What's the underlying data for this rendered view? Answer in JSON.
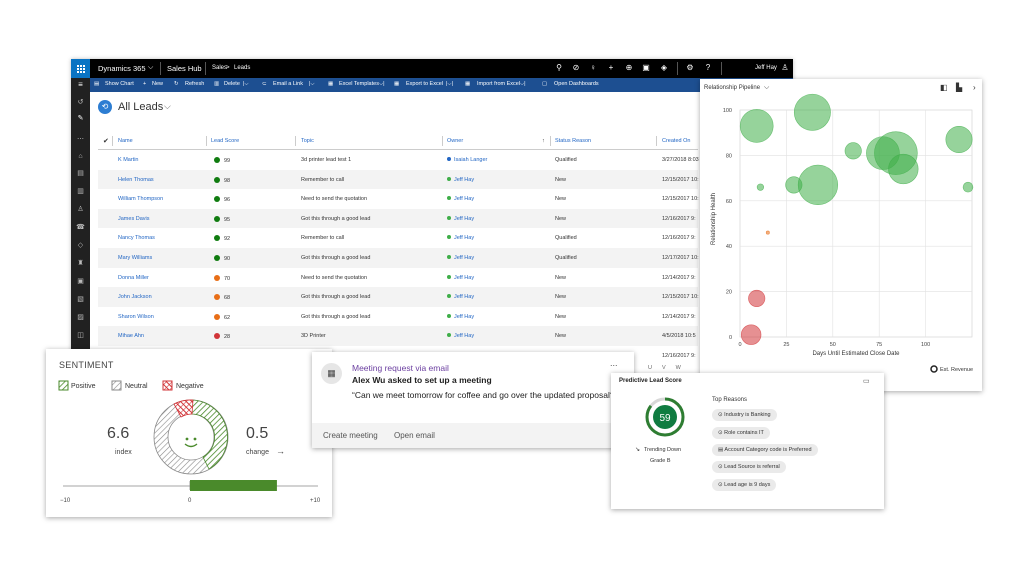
{
  "topbar": {
    "app_name": "Dynamics 365",
    "area": "Sales Hub",
    "breadcrumb_root": "Sales",
    "breadcrumb_sep": ">",
    "breadcrumb_current": "Leads",
    "user": "Jeff Hay"
  },
  "command_bar": {
    "show_chart": "Show Chart",
    "new": "New",
    "refresh": "Refresh",
    "delete": "Delete",
    "email_link": "Email a Link",
    "excel_templates": "Excel Templates",
    "export_excel": "Export to Excel",
    "import_excel": "Import from Excel",
    "open_dashboards": "Open Dashboards"
  },
  "view": {
    "title": "All Leads"
  },
  "grid": {
    "columns": [
      "Name",
      "Lead Score",
      "Topic",
      "Owner",
      "Status Reason",
      "Created On"
    ],
    "rows": [
      {
        "name": "K Martin",
        "score": "99",
        "color": "#107c10",
        "topic": "3d printer lead test 1",
        "owner": "Isaiah Langer",
        "owner_color": "#2266c4",
        "status": "Qualified",
        "created": "3/27/2018 8:03"
      },
      {
        "name": "Helen Thomas",
        "score": "98",
        "color": "#107c10",
        "topic": "Remember to call",
        "owner": "Jeff Hay",
        "owner_color": "#3fae49",
        "status": "New",
        "created": "12/15/2017 10:"
      },
      {
        "name": "William Thompson",
        "score": "96",
        "color": "#107c10",
        "topic": "Need to send the quotation",
        "owner": "Jeff Hay",
        "owner_color": "#3fae49",
        "status": "New",
        "created": "12/15/2017 10:"
      },
      {
        "name": "James Davis",
        "score": "95",
        "color": "#107c10",
        "topic": "Got this through a good lead",
        "owner": "Jeff Hay",
        "owner_color": "#3fae49",
        "status": "New",
        "created": "12/16/2017 9:"
      },
      {
        "name": "Nancy Thomas",
        "score": "92",
        "color": "#107c10",
        "topic": "Remember to call",
        "owner": "Jeff Hay",
        "owner_color": "#3fae49",
        "status": "Qualified",
        "created": "12/16/2017 9:"
      },
      {
        "name": "Mary Williams",
        "score": "90",
        "color": "#107c10",
        "topic": "Got this through a good lead",
        "owner": "Jeff Hay",
        "owner_color": "#3fae49",
        "status": "Qualified",
        "created": "12/17/2017 10:"
      },
      {
        "name": "Donna Miller",
        "score": "70",
        "color": "#e86e17",
        "topic": "Need to send the quotation",
        "owner": "Jeff Hay",
        "owner_color": "#3fae49",
        "status": "New",
        "created": "12/14/2017 9:"
      },
      {
        "name": "John Jackson",
        "score": "68",
        "color": "#e86e17",
        "topic": "Got this through a good lead",
        "owner": "Jeff Hay",
        "owner_color": "#3fae49",
        "status": "New",
        "created": "12/15/2017 10:"
      },
      {
        "name": "Sharon Wilson",
        "score": "62",
        "color": "#e86e17",
        "topic": "Got this through a good lead",
        "owner": "Jeff Hay",
        "owner_color": "#3fae49",
        "status": "New",
        "created": "12/14/2017 9:"
      },
      {
        "name": "Mihae Ahn",
        "score": "28",
        "color": "#d13438",
        "topic": "3D Printer",
        "owner": "Jeff Hay",
        "owner_color": "#3fae49",
        "status": "New",
        "created": "4/5/2018 10:5"
      },
      {
        "name": "",
        "score": "",
        "color": "",
        "topic": "",
        "owner": "",
        "owner_color": "",
        "status": "",
        "created": "12/16/2017 9:"
      }
    ]
  },
  "pipeline": {
    "title": "Relationship Pipeline",
    "legend": "Est. Revenue"
  },
  "chart_data": {
    "type": "scatter",
    "xlabel": "Days Until Estimated Close Date",
    "ylabel": "Relationship Health",
    "xlim": [
      0,
      125
    ],
    "ylim": [
      0,
      100
    ],
    "xticks": [
      0,
      25,
      50,
      75,
      100
    ],
    "yticks": [
      0,
      20,
      40,
      60,
      80,
      100
    ],
    "grid": true,
    "legend_position": "bottom-right",
    "points": [
      {
        "x": 9,
        "y": 93,
        "r": 10,
        "color": "#3fae49"
      },
      {
        "x": 39,
        "y": 99,
        "r": 11,
        "color": "#3fae49"
      },
      {
        "x": 61,
        "y": 82,
        "r": 5,
        "color": "#3fae49"
      },
      {
        "x": 77,
        "y": 81,
        "r": 10,
        "color": "#3fae49"
      },
      {
        "x": 84,
        "y": 81,
        "r": 13,
        "color": "#3fae49"
      },
      {
        "x": 88,
        "y": 74,
        "r": 9,
        "color": "#3fae49"
      },
      {
        "x": 118,
        "y": 87,
        "r": 8,
        "color": "#3fae49"
      },
      {
        "x": 11,
        "y": 66,
        "r": 2,
        "color": "#3fae49"
      },
      {
        "x": 29,
        "y": 67,
        "r": 5,
        "color": "#3fae49"
      },
      {
        "x": 42,
        "y": 67,
        "r": 12,
        "color": "#3fae49"
      },
      {
        "x": 130,
        "y": 66,
        "r": 3,
        "color": "#3fae49"
      },
      {
        "x": 15,
        "y": 46,
        "r": 1,
        "color": "#e86e17"
      },
      {
        "x": 9,
        "y": 17,
        "r": 5,
        "color": "#d13438"
      },
      {
        "x": 6,
        "y": 1,
        "r": 6,
        "color": "#d13438"
      }
    ]
  },
  "sentiment": {
    "title": "SENTIMENT",
    "positive": "Positive",
    "neutral": "Neutral",
    "negative": "Negative",
    "index_value": "6.6",
    "index_label": "index",
    "change_value": "0.5",
    "change_label": "change",
    "scale_min": "−10",
    "scale_mid": "0",
    "scale_max": "+10",
    "index_position": 0.35,
    "colors": {
      "positive": "#4a8a2b",
      "neutral": "#999999",
      "negative": "#d13438"
    }
  },
  "meeting": {
    "title": "Meeting request via email",
    "headline": "Alex Wu asked to set up a meeting",
    "quote": "“Can we meet tomorrow for coffee and go over the updated proposal?”",
    "create": "Create meeting",
    "open": "Open email",
    "more": "..."
  },
  "lead_score": {
    "title": "Predictive Lead Score",
    "score": "59",
    "score_fraction": 0.59,
    "trend": "Trending Down",
    "grade": "Grade B",
    "reasons_title": "Top Reasons",
    "reasons": [
      "Industry is Banking",
      "Role contains IT",
      "Account Category code is Preferred",
      "Lead Source is referral",
      "Lead age is 9 days"
    ]
  }
}
